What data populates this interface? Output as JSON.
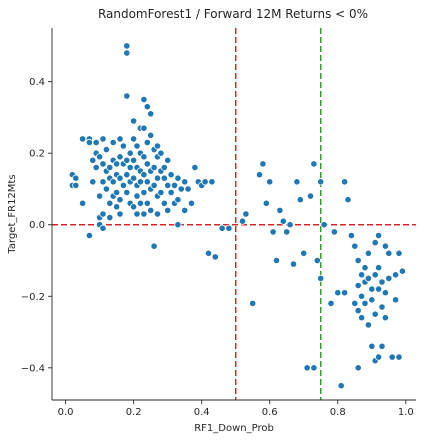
{
  "chart_data": {
    "type": "scatter",
    "title": "RandomForest1 / Forward 12M Returns < 0%",
    "xlabel": "RF1_Down_Prob",
    "ylabel": "Target_FR12Mts",
    "xlim": [
      -0.04,
      1.03
    ],
    "ylim": [
      -0.49,
      0.55
    ],
    "x_ticks": [
      0.0,
      0.2,
      0.4,
      0.6,
      0.8,
      1.0
    ],
    "x_tick_labels": [
      "0.0",
      "0.2",
      "0.4",
      "0.6",
      "0.8",
      "1.0"
    ],
    "y_ticks": [
      -0.4,
      -0.2,
      0.0,
      0.2,
      0.4
    ],
    "y_tick_labels": [
      "−0.4",
      "−0.2",
      "0.0",
      "0.2",
      "0.4"
    ],
    "grid": false,
    "point_color": "#1f77b4",
    "reference_lines": [
      {
        "orientation": "horizontal",
        "value": 0.0,
        "color": "#d62728",
        "style": "dashed"
      },
      {
        "orientation": "vertical",
        "value": 0.5,
        "color": "#d62728",
        "style": "dashed"
      },
      {
        "orientation": "vertical",
        "value": 0.75,
        "color": "#2ca02c",
        "style": "dashed"
      }
    ],
    "points": [
      [
        0.02,
        0.14
      ],
      [
        0.02,
        0.11
      ],
      [
        0.03,
        0.13
      ],
      [
        0.03,
        0.11
      ],
      [
        0.05,
        0.24
      ],
      [
        0.05,
        0.06
      ],
      [
        0.07,
        0.24
      ],
      [
        0.07,
        0.23
      ],
      [
        0.07,
        -0.03
      ],
      [
        0.08,
        0.18
      ],
      [
        0.08,
        0.12
      ],
      [
        0.09,
        0.23
      ],
      [
        0.09,
        0.2
      ],
      [
        0.09,
        0.16
      ],
      [
        0.1,
        0.19
      ],
      [
        0.1,
        0.08
      ],
      [
        0.1,
        0.02
      ],
      [
        0.1,
        0.0
      ],
      [
        0.11,
        0.24
      ],
      [
        0.11,
        0.17
      ],
      [
        0.11,
        0.12
      ],
      [
        0.11,
        0.03
      ],
      [
        0.11,
        -0.01
      ],
      [
        0.12,
        0.21
      ],
      [
        0.12,
        0.15
      ],
      [
        0.12,
        0.1
      ],
      [
        0.13,
        0.16
      ],
      [
        0.13,
        0.13
      ],
      [
        0.13,
        0.06
      ],
      [
        0.13,
        0.02
      ],
      [
        0.14,
        0.23
      ],
      [
        0.14,
        0.18
      ],
      [
        0.14,
        0.12
      ],
      [
        0.14,
        0.08
      ],
      [
        0.15,
        0.17
      ],
      [
        0.15,
        0.14
      ],
      [
        0.15,
        0.09
      ],
      [
        0.15,
        0.05
      ],
      [
        0.16,
        0.24
      ],
      [
        0.16,
        0.19
      ],
      [
        0.16,
        0.13
      ],
      [
        0.16,
        0.07
      ],
      [
        0.16,
        0.03
      ],
      [
        0.17,
        0.22
      ],
      [
        0.17,
        0.17
      ],
      [
        0.17,
        0.11
      ],
      [
        0.18,
        0.5
      ],
      [
        0.18,
        0.48
      ],
      [
        0.18,
        0.36
      ],
      [
        0.18,
        0.18
      ],
      [
        0.18,
        0.14
      ],
      [
        0.18,
        0.09
      ],
      [
        0.19,
        0.2
      ],
      [
        0.19,
        0.16
      ],
      [
        0.19,
        0.12
      ],
      [
        0.19,
        0.06
      ],
      [
        0.2,
        0.29
      ],
      [
        0.2,
        0.24
      ],
      [
        0.2,
        0.18
      ],
      [
        0.2,
        0.13
      ],
      [
        0.2,
        0.05
      ],
      [
        0.21,
        0.22
      ],
      [
        0.21,
        0.16
      ],
      [
        0.21,
        0.11
      ],
      [
        0.21,
        0.08
      ],
      [
        0.21,
        0.03
      ],
      [
        0.22,
        0.27
      ],
      [
        0.22,
        0.2
      ],
      [
        0.22,
        0.15
      ],
      [
        0.22,
        0.12
      ],
      [
        0.22,
        0.06
      ],
      [
        0.23,
        0.35
      ],
      [
        0.23,
        0.27
      ],
      [
        0.23,
        0.19
      ],
      [
        0.23,
        0.14
      ],
      [
        0.23,
        0.09
      ],
      [
        0.23,
        0.03
      ],
      [
        0.24,
        0.33
      ],
      [
        0.24,
        0.23
      ],
      [
        0.24,
        0.17
      ],
      [
        0.24,
        0.12
      ],
      [
        0.24,
        0.06
      ],
      [
        0.25,
        0.31
      ],
      [
        0.25,
        0.25
      ],
      [
        0.25,
        0.15
      ],
      [
        0.25,
        0.1
      ],
      [
        0.25,
        0.04
      ],
      [
        0.26,
        0.21
      ],
      [
        0.26,
        0.16
      ],
      [
        0.26,
        0.11
      ],
      [
        0.26,
        -0.06
      ],
      [
        0.27,
        0.22
      ],
      [
        0.27,
        0.19
      ],
      [
        0.27,
        0.13
      ],
      [
        0.27,
        0.08
      ],
      [
        0.27,
        0.03
      ],
      [
        0.28,
        0.2
      ],
      [
        0.28,
        0.15
      ],
      [
        0.28,
        0.09
      ],
      [
        0.29,
        0.16
      ],
      [
        0.29,
        0.13
      ],
      [
        0.29,
        0.06
      ],
      [
        0.3,
        0.18
      ],
      [
        0.3,
        0.11
      ],
      [
        0.3,
        0.04
      ],
      [
        0.31,
        0.14
      ],
      [
        0.31,
        0.09
      ],
      [
        0.32,
        0.11
      ],
      [
        0.32,
        0.06
      ],
      [
        0.33,
        0.13
      ],
      [
        0.33,
        0.07
      ],
      [
        0.33,
        0.0
      ],
      [
        0.34,
        0.1
      ],
      [
        0.35,
        0.12
      ],
      [
        0.35,
        0.04
      ],
      [
        0.36,
        0.1
      ],
      [
        0.37,
        0.06
      ],
      [
        0.38,
        0.16
      ],
      [
        0.39,
        0.12
      ],
      [
        0.4,
        0.11
      ],
      [
        0.41,
        0.12
      ],
      [
        0.42,
        -0.08
      ],
      [
        0.43,
        0.12
      ],
      [
        0.44,
        -0.09
      ],
      [
        0.46,
        -0.01
      ],
      [
        0.48,
        -0.01
      ],
      [
        0.52,
        0.01
      ],
      [
        0.53,
        0.03
      ],
      [
        0.55,
        -0.22
      ],
      [
        0.57,
        0.14
      ],
      [
        0.58,
        0.17
      ],
      [
        0.59,
        0.06
      ],
      [
        0.6,
        0.12
      ],
      [
        0.61,
        -0.02
      ],
      [
        0.62,
        -0.1
      ],
      [
        0.63,
        0.04
      ],
      [
        0.64,
        0.01
      ],
      [
        0.65,
        -0.02
      ],
      [
        0.66,
        0.0
      ],
      [
        0.67,
        -0.11
      ],
      [
        0.68,
        0.12
      ],
      [
        0.69,
        0.07
      ],
      [
        0.7,
        -0.08
      ],
      [
        0.71,
        -0.4
      ],
      [
        0.72,
        0.08
      ],
      [
        0.73,
        0.17
      ],
      [
        0.73,
        -0.4
      ],
      [
        0.74,
        -0.1
      ],
      [
        0.75,
        0.12
      ],
      [
        0.75,
        -0.15
      ],
      [
        0.76,
        0.0
      ],
      [
        0.78,
        -0.22
      ],
      [
        0.79,
        -0.02
      ],
      [
        0.8,
        -0.19
      ],
      [
        0.81,
        -0.45
      ],
      [
        0.82,
        0.12
      ],
      [
        0.82,
        -0.19
      ],
      [
        0.83,
        0.07
      ],
      [
        0.84,
        -0.03
      ],
      [
        0.85,
        -0.06
      ],
      [
        0.85,
        -0.22
      ],
      [
        0.86,
        -0.1
      ],
      [
        0.86,
        -0.17
      ],
      [
        0.86,
        -0.24
      ],
      [
        0.86,
        -0.4
      ],
      [
        0.87,
        -0.14
      ],
      [
        0.87,
        -0.2
      ],
      [
        0.87,
        -0.26
      ],
      [
        0.88,
        -0.12
      ],
      [
        0.88,
        -0.16
      ],
      [
        0.88,
        -0.22
      ],
      [
        0.89,
        -0.08
      ],
      [
        0.89,
        -0.15
      ],
      [
        0.89,
        -0.28
      ],
      [
        0.9,
        -0.18
      ],
      [
        0.9,
        -0.21
      ],
      [
        0.9,
        -0.34
      ],
      [
        0.91,
        -0.05
      ],
      [
        0.91,
        -0.14
      ],
      [
        0.91,
        -0.25
      ],
      [
        0.91,
        -0.38
      ],
      [
        0.92,
        -0.03
      ],
      [
        0.92,
        -0.12
      ],
      [
        0.92,
        -0.18
      ],
      [
        0.92,
        -0.37
      ],
      [
        0.93,
        -0.16
      ],
      [
        0.93,
        -0.23
      ],
      [
        0.93,
        -0.34
      ],
      [
        0.94,
        -0.06
      ],
      [
        0.94,
        -0.19
      ],
      [
        0.94,
        -0.26
      ],
      [
        0.95,
        -0.08
      ],
      [
        0.95,
        -0.15
      ],
      [
        0.96,
        -0.37
      ],
      [
        0.97,
        -0.14
      ],
      [
        0.97,
        -0.21
      ],
      [
        0.98,
        -0.08
      ],
      [
        0.98,
        -0.37
      ],
      [
        0.99,
        -0.13
      ]
    ]
  }
}
